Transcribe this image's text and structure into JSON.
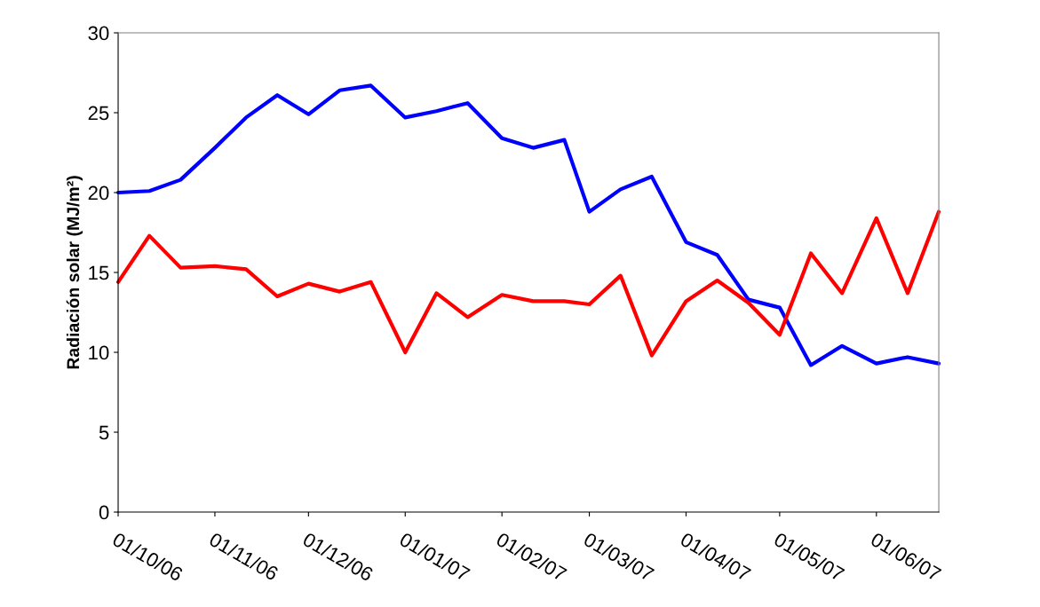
{
  "chart_data": {
    "type": "line",
    "ylabel": "Radiación solar (MJ/m²)",
    "x": [
      "2006-10-01",
      "2006-10-11",
      "2006-10-21",
      "2006-11-01",
      "2006-11-11",
      "2006-11-21",
      "2006-12-01",
      "2006-12-11",
      "2006-12-21",
      "2007-01-01",
      "2007-01-11",
      "2007-01-21",
      "2007-02-01",
      "2007-02-11",
      "2007-02-21",
      "2007-03-01",
      "2007-03-11",
      "2007-03-21",
      "2007-04-01",
      "2007-04-11",
      "2007-04-21",
      "2007-05-01",
      "2007-05-11",
      "2007-05-21",
      "2007-06-01",
      "2007-06-11",
      "2007-06-21"
    ],
    "series": [
      {
        "color": "#0000ff",
        "values": [
          20.0,
          20.1,
          20.8,
          22.8,
          24.7,
          26.1,
          24.9,
          26.4,
          26.7,
          24.7,
          25.1,
          25.6,
          23.4,
          22.8,
          23.3,
          18.8,
          20.2,
          21.0,
          16.9,
          16.1,
          13.3,
          12.8,
          9.2,
          10.4,
          9.3,
          9.7,
          9.3
        ]
      },
      {
        "color": "#ff0000",
        "values": [
          14.4,
          17.3,
          15.3,
          15.4,
          15.2,
          13.5,
          14.3,
          13.8,
          14.4,
          10.0,
          13.7,
          12.2,
          13.6,
          13.2,
          13.2,
          13.0,
          14.8,
          9.8,
          13.2,
          14.5,
          13.1,
          11.1,
          16.2,
          13.7,
          18.4,
          13.7,
          18.8
        ]
      }
    ],
    "xlim": [
      "2006-10-01",
      "2007-06-21"
    ],
    "xticks": [
      {
        "value": "2006-10-01",
        "label": "01/10/06"
      },
      {
        "value": "2006-11-01",
        "label": "01/11/06"
      },
      {
        "value": "2006-12-01",
        "label": "01/12/06"
      },
      {
        "value": "2007-01-01",
        "label": "01/01/07"
      },
      {
        "value": "2007-02-01",
        "label": "01/02/07"
      },
      {
        "value": "2007-03-01",
        "label": "01/03/07"
      },
      {
        "value": "2007-04-01",
        "label": "01/04/07"
      },
      {
        "value": "2007-05-01",
        "label": "01/05/07"
      },
      {
        "value": "2007-06-01",
        "label": "01/06/07"
      }
    ],
    "ylim": [
      0,
      30
    ],
    "yticks": [
      0,
      5,
      10,
      15,
      20,
      25,
      30
    ],
    "grid": false,
    "marker": "none",
    "line_style": "solid"
  }
}
